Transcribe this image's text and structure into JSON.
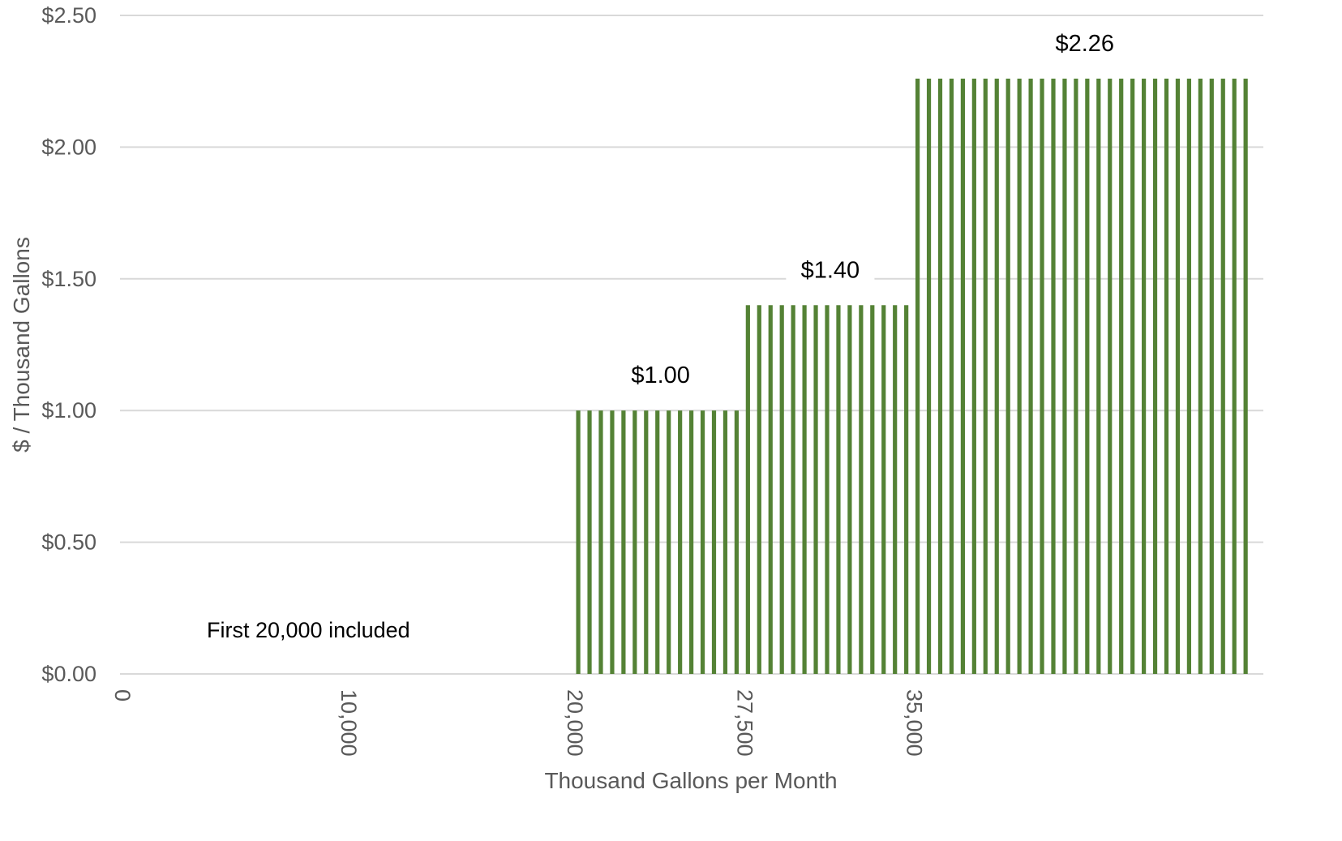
{
  "chart_data": {
    "type": "bar",
    "title": "",
    "xlabel": "Thousand Gallons per Month",
    "ylabel": "$ / Thousand Gallons",
    "ylim": [
      0,
      2.5
    ],
    "xlim": [
      0,
      50000
    ],
    "y_ticks": [
      "$0.00",
      "$0.50",
      "$1.00",
      "$1.50",
      "$2.00",
      "$2.50"
    ],
    "y_tick_values": [
      0,
      0.5,
      1.0,
      1.5,
      2.0,
      2.5
    ],
    "x_ticks": [
      "0",
      "10,000",
      "20,000",
      "27,500",
      "35,000"
    ],
    "x_tick_values": [
      0,
      10000,
      20000,
      27500,
      35000
    ],
    "grid": true,
    "legend": "none",
    "bar_color": "#548235",
    "tiers": [
      {
        "from": 0,
        "to": 20000,
        "value": 0.0,
        "label": ""
      },
      {
        "from": 20000,
        "to": 27500,
        "value": 1.0,
        "label": "$1.00"
      },
      {
        "from": 27500,
        "to": 35000,
        "value": 1.4,
        "label": "$1.40"
      },
      {
        "from": 35000,
        "to": 50000,
        "value": 2.26,
        "label": "$2.26"
      }
    ],
    "bar_step": 500,
    "annotation": "First 20,000 included"
  }
}
